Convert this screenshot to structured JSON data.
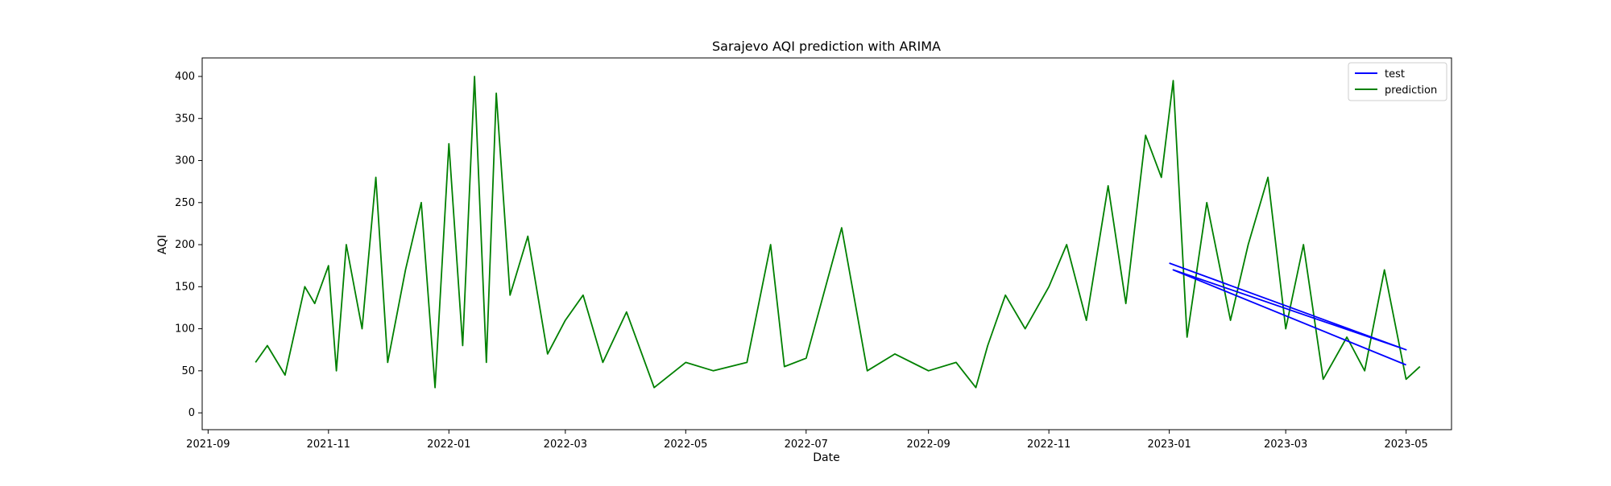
{
  "chart_data": {
    "type": "line",
    "title": "Sarajevo AQI prediction with ARIMA",
    "xlabel": "Date",
    "ylabel": "AQI",
    "x_type": "date",
    "xlim": [
      "2021-08-29",
      "2023-05-24"
    ],
    "ylim": [
      -20,
      422
    ],
    "x_ticks": [
      "2021-09",
      "2021-11",
      "2022-01",
      "2022-03",
      "2022-05",
      "2022-07",
      "2022-09",
      "2022-11",
      "2023-01",
      "2023-03",
      "2023-05"
    ],
    "x_tick_dates": [
      "2021-09-01",
      "2021-11-01",
      "2022-01-01",
      "2022-03-01",
      "2022-05-01",
      "2022-07-01",
      "2022-09-01",
      "2022-11-01",
      "2023-01-01",
      "2023-03-01",
      "2023-05-01"
    ],
    "y_ticks": [
      0,
      50,
      100,
      150,
      200,
      250,
      300,
      350,
      400
    ],
    "grid": false,
    "legend_position": "top-right",
    "series": [
      {
        "name": "test",
        "color": "#0000ff",
        "x": [
          "2023-01-01",
          "2023-05-01",
          "2023-01-03",
          "2023-05-01"
        ],
        "y": [
          178,
          75,
          170,
          57
        ]
      },
      {
        "name": "prediction",
        "color": "#008000",
        "x": [
          "2021-09-25",
          "2021-10-01",
          "2021-10-10",
          "2021-10-20",
          "2021-10-25",
          "2021-11-01",
          "2021-11-05",
          "2021-11-10",
          "2021-11-18",
          "2021-11-25",
          "2021-12-01",
          "2021-12-10",
          "2021-12-18",
          "2021-12-25",
          "2022-01-01",
          "2022-01-08",
          "2022-01-14",
          "2022-01-20",
          "2022-01-25",
          "2022-02-01",
          "2022-02-10",
          "2022-02-20",
          "2022-03-01",
          "2022-03-10",
          "2022-03-20",
          "2022-04-01",
          "2022-04-15",
          "2022-05-01",
          "2022-05-15",
          "2022-06-01",
          "2022-06-13",
          "2022-06-20",
          "2022-07-01",
          "2022-07-19",
          "2022-08-01",
          "2022-08-15",
          "2022-09-01",
          "2022-09-15",
          "2022-09-25",
          "2022-10-01",
          "2022-10-10",
          "2022-10-20",
          "2022-11-01",
          "2022-11-10",
          "2022-11-20",
          "2022-12-01",
          "2022-12-10",
          "2022-12-20",
          "2022-12-28",
          "2023-01-03",
          "2023-01-10",
          "2023-01-20",
          "2023-02-01",
          "2023-02-10",
          "2023-02-20",
          "2023-03-01",
          "2023-03-10",
          "2023-03-20",
          "2023-04-01",
          "2023-04-10",
          "2023-04-20",
          "2023-05-01",
          "2023-05-08"
        ],
        "y": [
          60,
          80,
          45,
          150,
          130,
          175,
          50,
          200,
          100,
          280,
          60,
          170,
          250,
          30,
          320,
          80,
          400,
          60,
          380,
          140,
          210,
          70,
          110,
          140,
          60,
          120,
          30,
          60,
          50,
          60,
          200,
          55,
          65,
          220,
          50,
          70,
          50,
          60,
          30,
          80,
          140,
          100,
          150,
          200,
          110,
          270,
          130,
          330,
          280,
          395,
          90,
          250,
          110,
          200,
          280,
          100,
          200,
          40,
          90,
          50,
          170,
          40,
          55
        ]
      }
    ]
  }
}
